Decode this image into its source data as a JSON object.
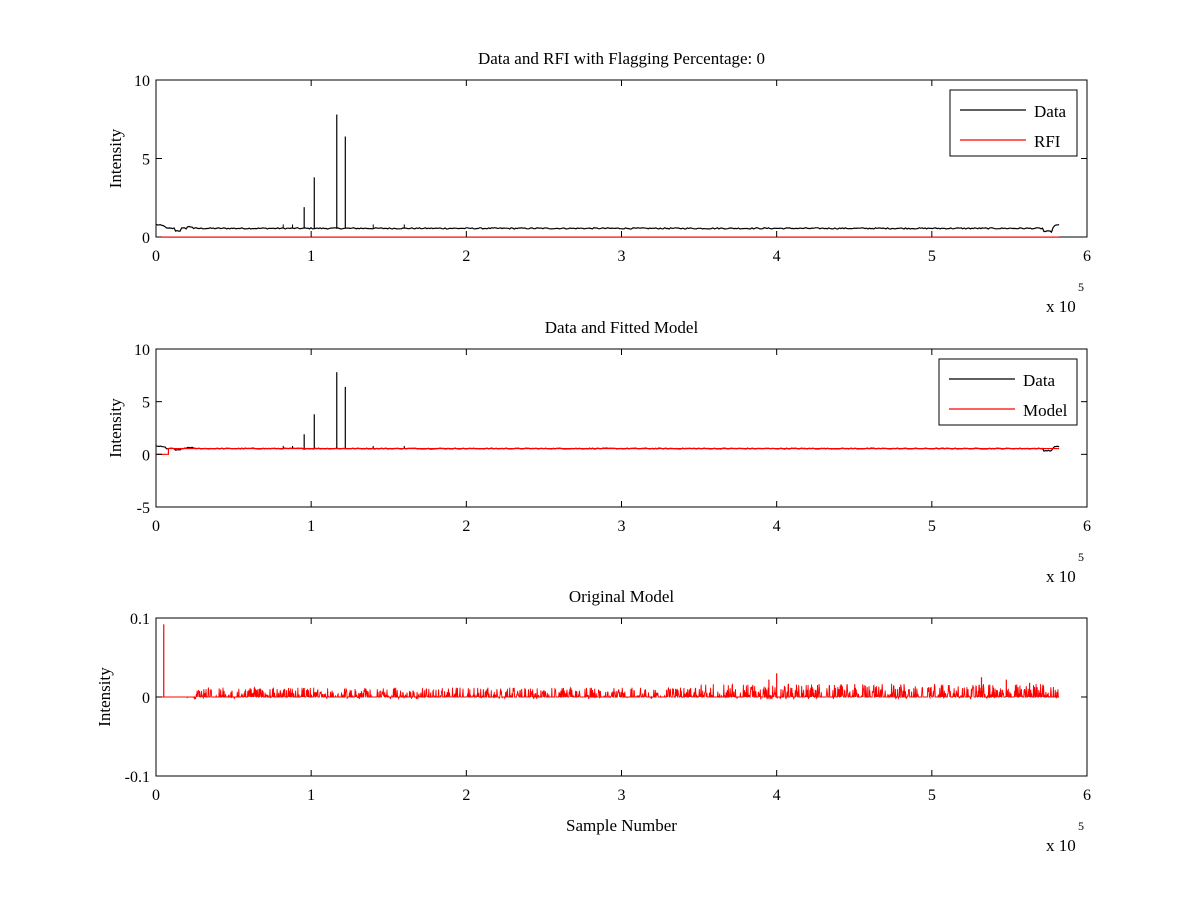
{
  "chart_data": [
    {
      "type": "line",
      "title": "Data and RFI with Flagging Percentage: 0",
      "xlabel": "",
      "ylabel": "Intensity",
      "xlim": [
        0,
        6
      ],
      "ylim": [
        0,
        10
      ],
      "x_ticks": [
        "0",
        "1",
        "2",
        "3",
        "4",
        "5",
        "6"
      ],
      "y_ticks": [
        "0",
        "5",
        "10"
      ],
      "x_multiplier": "x 10",
      "x_exponent": "5",
      "legend_position": "top-right",
      "series": [
        {
          "name": "Data",
          "color": "#000000",
          "baseline": 0.55,
          "spikes": [
            {
              "x": 0.955,
              "y": 1.9
            },
            {
              "x": 1.02,
              "y": 3.8
            },
            {
              "x": 1.165,
              "y": 7.8
            },
            {
              "x": 1.22,
              "y": 6.4
            }
          ]
        },
        {
          "name": "RFI",
          "color": "#ff0000",
          "baseline": 0
        }
      ]
    },
    {
      "type": "line",
      "title": "Data and Fitted Model",
      "xlabel": "",
      "ylabel": "Intensity",
      "xlim": [
        0,
        6
      ],
      "ylim": [
        -5,
        10
      ],
      "x_ticks": [
        "0",
        "1",
        "2",
        "3",
        "4",
        "5",
        "6"
      ],
      "y_ticks": [
        "-5",
        "0",
        "5",
        "10"
      ],
      "x_multiplier": "x 10",
      "x_exponent": "5",
      "legend_position": "top-right",
      "series": [
        {
          "name": "Data",
          "color": "#000000",
          "baseline": 0.55,
          "spikes": [
            {
              "x": 0.955,
              "y": 1.9
            },
            {
              "x": 1.02,
              "y": 3.8
            },
            {
              "x": 1.165,
              "y": 7.8
            },
            {
              "x": 1.22,
              "y": 6.4
            }
          ]
        },
        {
          "name": "Model",
          "color": "#ff0000",
          "baseline": 0.55,
          "initial_step": {
            "x_end": 0.08,
            "y": 0.0
          }
        }
      ]
    },
    {
      "type": "line",
      "title": "Original Model",
      "xlabel": "Sample Number",
      "ylabel": "Intensity",
      "xlim": [
        0,
        6
      ],
      "ylim": [
        -0.1,
        0.1
      ],
      "x_ticks": [
        "0",
        "1",
        "2",
        "3",
        "4",
        "5",
        "6"
      ],
      "y_ticks": [
        "-0.1",
        "0",
        "0.1"
      ],
      "x_multiplier": "x 10",
      "x_exponent": "5",
      "series": [
        {
          "name": "",
          "color": "#ff0000",
          "baseline": 0,
          "spikes": [
            {
              "x": 0.05,
              "y": 0.092
            },
            {
              "x": 4.0,
              "y": 0.03
            },
            {
              "x": 3.95,
              "y": 0.022
            },
            {
              "x": 5.32,
              "y": 0.025
            },
            {
              "x": 5.48,
              "y": 0.022
            },
            {
              "x": 5.63,
              "y": 0.018
            }
          ],
          "noise_amplitude": 0.012
        }
      ]
    }
  ]
}
